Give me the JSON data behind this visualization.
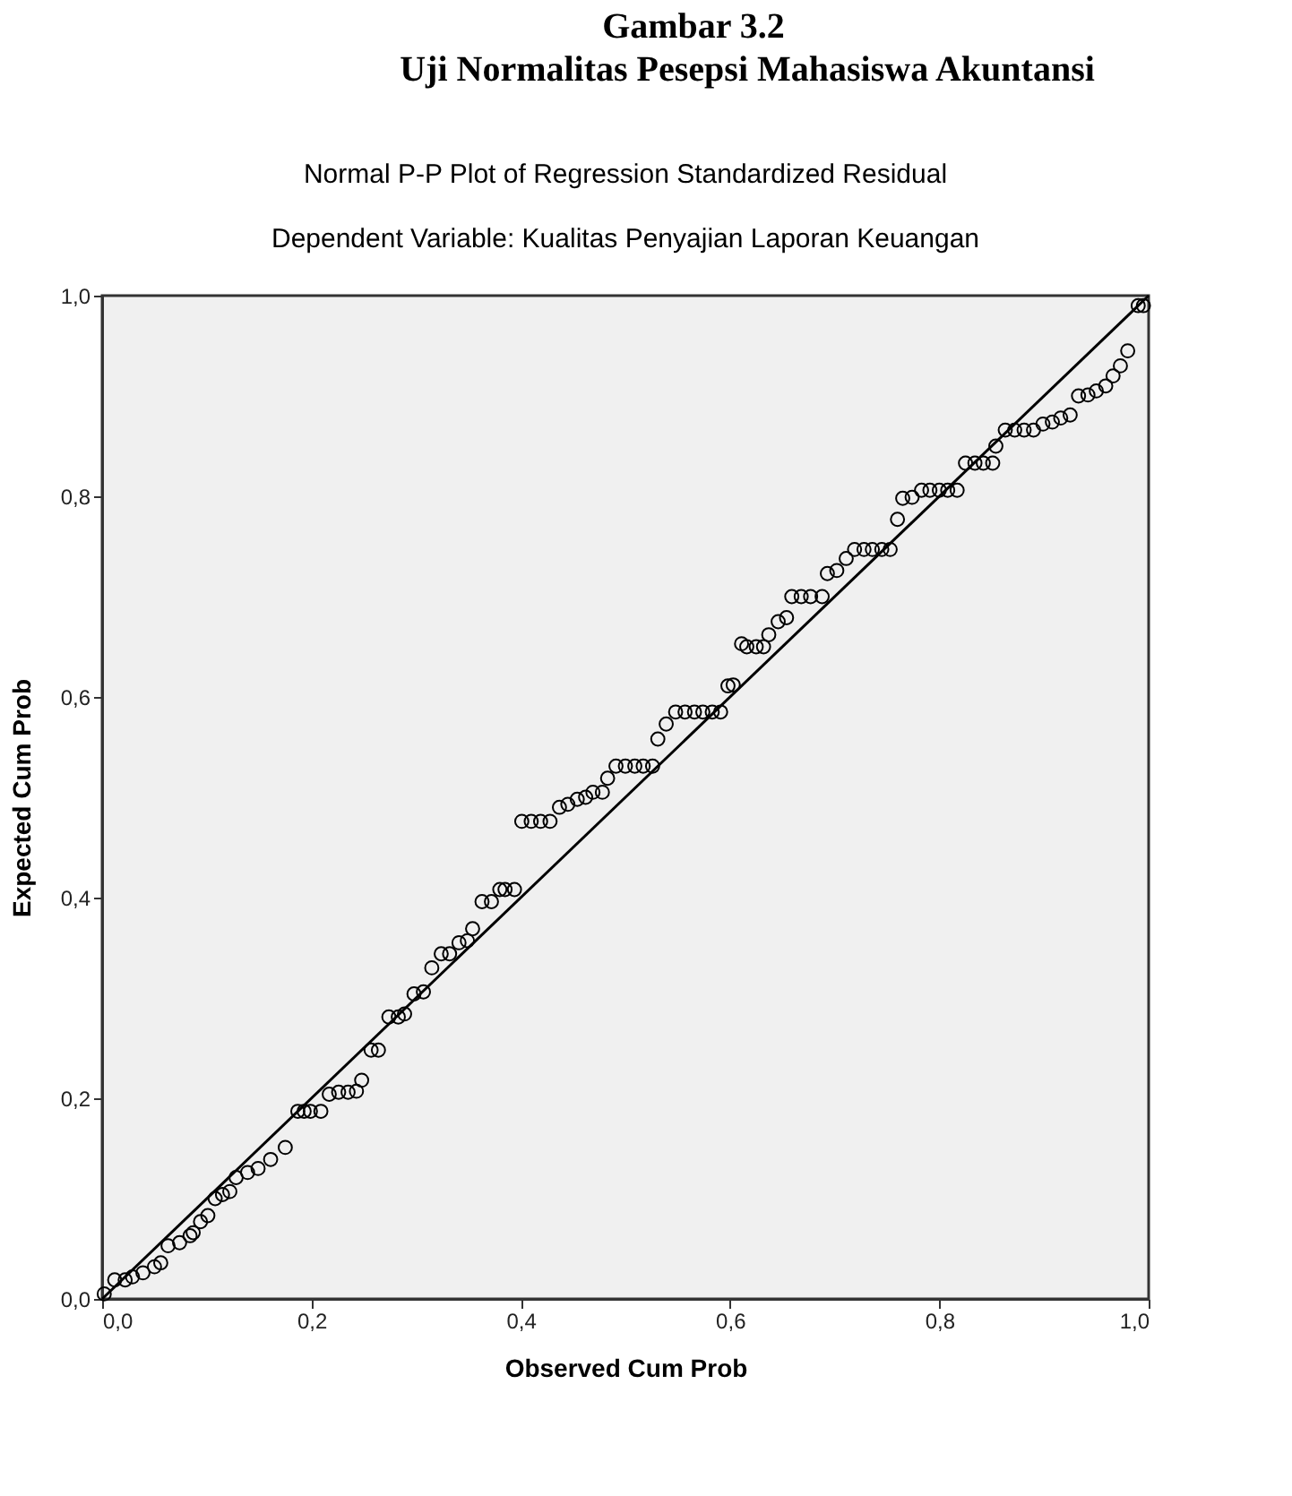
{
  "chart_data": {
    "type": "scatter",
    "title": "Normal P-P Plot of Regression Standardized Residual",
    "subtitle": "Dependent Variable: Kualitas Penyajian Laporan Keuangan",
    "xlabel": "Observed Cum Prob",
    "ylabel": "Expected Cum Prob",
    "annotations": [
      "Gambar 3.2",
      "Uji Normalitas Pesepsi Mahasiswa Akuntansi"
    ],
    "xlim": [
      0,
      1
    ],
    "ylim": [
      0,
      1
    ],
    "xticks": [
      {
        "value": 0,
        "label": "0,0"
      },
      {
        "value": 0.2,
        "label": "0,2"
      },
      {
        "value": 0.4,
        "label": "0,4"
      },
      {
        "value": 0.6,
        "label": "0,6"
      },
      {
        "value": 0.8,
        "label": "0,8"
      },
      {
        "value": 1,
        "label": "1,0"
      }
    ],
    "yticks": [
      {
        "value": 0,
        "label": "0,0"
      },
      {
        "value": 0.2,
        "label": "0,2"
      },
      {
        "value": 0.4,
        "label": "0,4"
      },
      {
        "value": 0.6,
        "label": "0,6"
      },
      {
        "value": 0.8,
        "label": "0,8"
      },
      {
        "value": 1,
        "label": "1,0"
      }
    ],
    "grid": false,
    "series": [
      {
        "color": "#000000",
        "marker": "circle",
        "x": [
          0.002,
          0.012,
          0.022,
          0.029,
          0.039,
          0.05,
          0.056,
          0.063,
          0.074,
          0.084,
          0.087,
          0.094,
          0.101,
          0.108,
          0.115,
          0.122,
          0.128,
          0.139,
          0.149,
          0.161,
          0.175,
          0.187,
          0.193,
          0.199,
          0.209,
          0.217,
          0.226,
          0.235,
          0.243,
          0.248,
          0.257,
          0.264,
          0.274,
          0.283,
          0.289,
          0.298,
          0.307,
          0.315,
          0.324,
          0.332,
          0.341,
          0.349,
          0.354,
          0.363,
          0.372,
          0.38,
          0.385,
          0.394,
          0.401,
          0.41,
          0.419,
          0.428,
          0.437,
          0.445,
          0.454,
          0.462,
          0.469,
          0.478,
          0.483,
          0.491,
          0.5,
          0.509,
          0.517,
          0.526,
          0.531,
          0.539,
          0.548,
          0.557,
          0.566,
          0.574,
          0.583,
          0.591,
          0.598,
          0.603,
          0.611,
          0.616,
          0.625,
          0.632,
          0.637,
          0.646,
          0.654,
          0.659,
          0.668,
          0.677,
          0.688,
          0.693,
          0.702,
          0.711,
          0.719,
          0.728,
          0.736,
          0.745,
          0.753,
          0.76,
          0.765,
          0.774,
          0.783,
          0.791,
          0.8,
          0.808,
          0.817,
          0.825,
          0.834,
          0.842,
          0.851,
          0.854,
          0.863,
          0.872,
          0.881,
          0.89,
          0.899,
          0.908,
          0.916,
          0.925,
          0.933,
          0.942,
          0.95,
          0.959,
          0.966,
          0.973,
          0.98,
          0.99,
          0.995
        ],
        "values": [
          0.005,
          0.019,
          0.019,
          0.022,
          0.026,
          0.032,
          0.036,
          0.053,
          0.056,
          0.063,
          0.066,
          0.077,
          0.083,
          0.1,
          0.104,
          0.107,
          0.121,
          0.126,
          0.13,
          0.139,
          0.151,
          0.187,
          0.187,
          0.187,
          0.187,
          0.204,
          0.206,
          0.206,
          0.207,
          0.218,
          0.248,
          0.248,
          0.281,
          0.281,
          0.284,
          0.304,
          0.306,
          0.33,
          0.344,
          0.344,
          0.355,
          0.357,
          0.369,
          0.396,
          0.396,
          0.408,
          0.408,
          0.408,
          0.476,
          0.476,
          0.476,
          0.476,
          0.49,
          0.493,
          0.498,
          0.5,
          0.505,
          0.505,
          0.519,
          0.531,
          0.531,
          0.531,
          0.531,
          0.531,
          0.558,
          0.573,
          0.585,
          0.585,
          0.585,
          0.585,
          0.585,
          0.585,
          0.611,
          0.612,
          0.653,
          0.65,
          0.65,
          0.65,
          0.662,
          0.675,
          0.679,
          0.7,
          0.7,
          0.7,
          0.7,
          0.723,
          0.726,
          0.738,
          0.747,
          0.747,
          0.747,
          0.747,
          0.747,
          0.777,
          0.798,
          0.799,
          0.806,
          0.806,
          0.806,
          0.806,
          0.806,
          0.833,
          0.833,
          0.833,
          0.833,
          0.85,
          0.866,
          0.866,
          0.866,
          0.866,
          0.872,
          0.874,
          0.878,
          0.881,
          0.9,
          0.901,
          0.905,
          0.91,
          0.92,
          0.93,
          0.945,
          0.99,
          0.99
        ]
      },
      {
        "type": "line",
        "color": "#000000",
        "marker": "none",
        "line_style": "solid",
        "x": [
          0,
          1
        ],
        "values": [
          0,
          1
        ]
      }
    ]
  }
}
